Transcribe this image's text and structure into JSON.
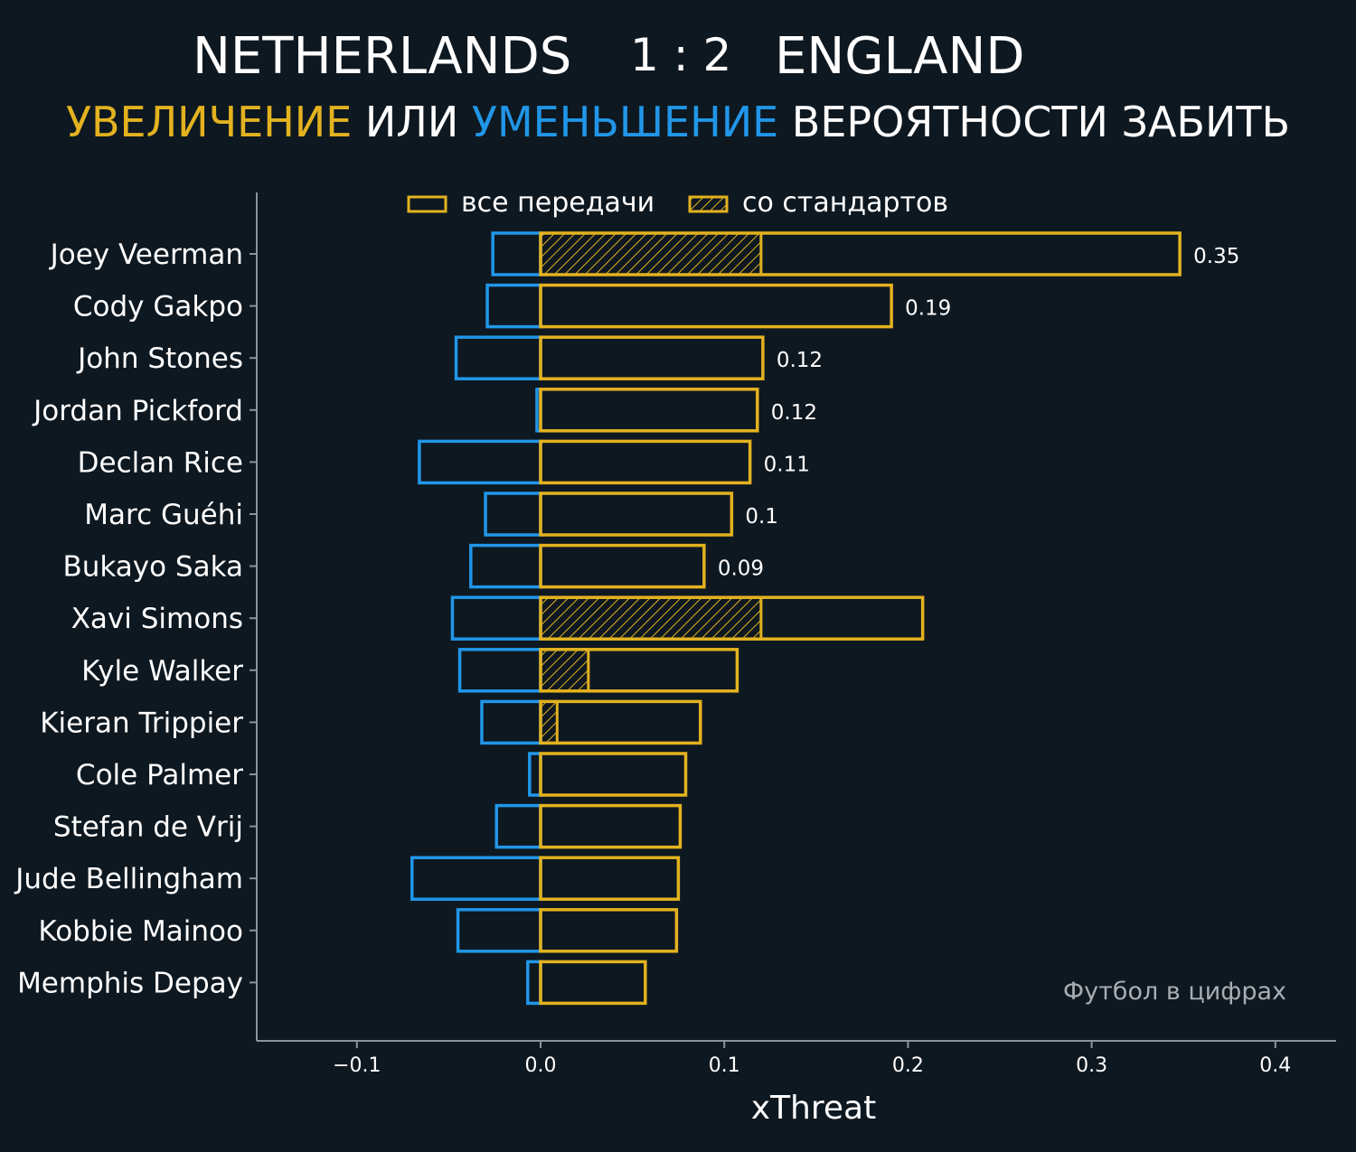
{
  "header": {
    "home_team": "NETHERLANDS",
    "score": "1 : 2",
    "away_team": "ENGLAND",
    "subtitle_increase": "УВЕЛИЧЕНИЕ",
    "subtitle_or": " ИЛИ ",
    "subtitle_decrease": "УМЕНЬШЕНИЕ",
    "subtitle_rest": " ВЕРОЯТНОСТИ ЗАБИТЬ"
  },
  "colors": {
    "background": "#0e1820",
    "increase": "#e3b21f",
    "decrease": "#2196e8",
    "axis": "#8a949a",
    "text": "#ffffff"
  },
  "chart_data": {
    "type": "bar",
    "orientation": "horizontal",
    "xlabel": "xThreat",
    "xlim": [
      -0.155,
      0.43
    ],
    "xticks": [
      -0.1,
      0.0,
      0.1,
      0.2,
      0.3,
      0.4
    ],
    "xtick_labels": [
      "−0.1",
      "0.0",
      "0.1",
      "0.2",
      "0.3",
      "0.4"
    ],
    "legend": {
      "position": "top-center",
      "all_passes": "все передачи",
      "set_pieces": "со стандартов"
    },
    "watermark": "Футбол в цифрах",
    "categories": [
      "Joey Veerman",
      "Cody Gakpo",
      "John Stones",
      "Jordan Pickford",
      "Declan Rice",
      "Marc Guéhi",
      "Bukayo Saka",
      "Xavi Simons",
      "Kyle Walker",
      "Kieran Trippier",
      "Cole Palmer",
      "Stefan de Vrij",
      "Jude Bellingham",
      "Kobbie Mainoo",
      "Memphis Depay"
    ],
    "series": [
      {
        "name": "увеличение (все передачи)",
        "values": [
          0.348,
          0.191,
          0.121,
          0.118,
          0.114,
          0.104,
          0.089,
          0.208,
          0.107,
          0.087,
          0.079,
          0.076,
          0.075,
          0.074,
          0.057
        ]
      },
      {
        "name": "уменьшение",
        "values": [
          -0.026,
          -0.029,
          -0.046,
          -0.002,
          -0.066,
          -0.03,
          -0.038,
          -0.048,
          -0.044,
          -0.032,
          -0.006,
          -0.024,
          -0.07,
          -0.045,
          -0.007
        ]
      },
      {
        "name": "со стандартов",
        "values": [
          0.12,
          0,
          0,
          0,
          0,
          0,
          0,
          0.12,
          0.026,
          0.009,
          0,
          0,
          0,
          0,
          0
        ]
      }
    ],
    "value_labels": [
      "0.35",
      "0.19",
      "0.12",
      "0.12",
      "0.11",
      "0.1",
      "0.09",
      "",
      "",
      "",
      "",
      "",
      "",
      "",
      ""
    ]
  }
}
